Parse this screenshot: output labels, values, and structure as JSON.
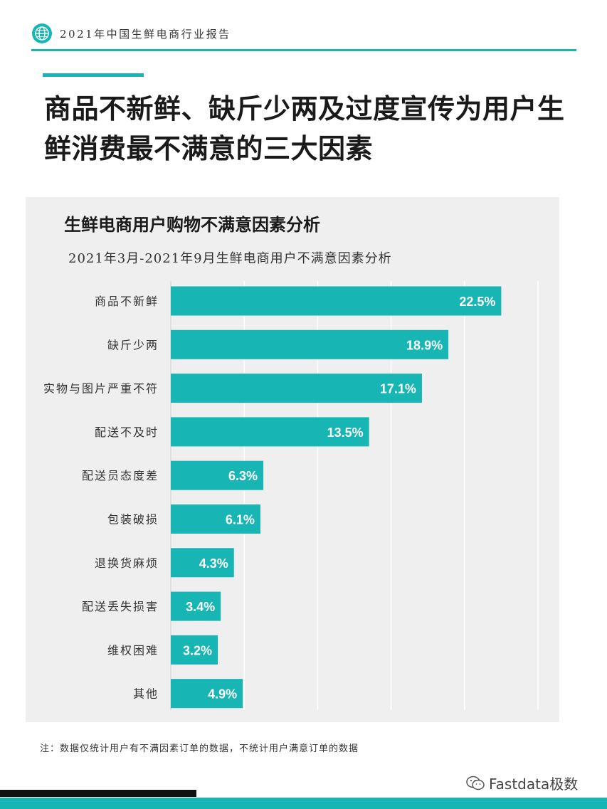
{
  "header": {
    "report_title": "2021年中国生鲜电商行业报告"
  },
  "headline": {
    "text": "商品不新鲜、缺斤少两及过度宣传为用户生鲜消费最不满意的三大因素"
  },
  "chart": {
    "title": "生鲜电商用户购物不满意因素分析",
    "subtitle": "2021年3月-2021年9月生鲜电商用户不满意因素分析"
  },
  "chart_data": {
    "type": "bar",
    "orientation": "horizontal",
    "categories": [
      "商品不新鲜",
      "缺斤少两",
      "实物与图片严重不符",
      "配送不及时",
      "配送员态度差",
      "包装破损",
      "退换货麻烦",
      "配送丢失损害",
      "维权困难",
      "其他"
    ],
    "values": [
      22.5,
      18.9,
      17.1,
      13.5,
      6.3,
      6.1,
      4.3,
      3.4,
      3.2,
      4.9
    ],
    "value_labels": [
      "22.5%",
      "18.9%",
      "17.1%",
      "13.5%",
      "6.3%",
      "6.1%",
      "4.3%",
      "3.4%",
      "3.2%",
      "4.9%"
    ],
    "xlim": [
      0,
      25
    ],
    "grid": true,
    "bar_color": "#18b5b5"
  },
  "footnote": "注：数据仅统计用户有不满因素订单的数据，不统计用户满意订单的数据",
  "watermark": "Fastdata极数",
  "colors": {
    "accent": "#18b5b5",
    "panel": "#efefef"
  }
}
